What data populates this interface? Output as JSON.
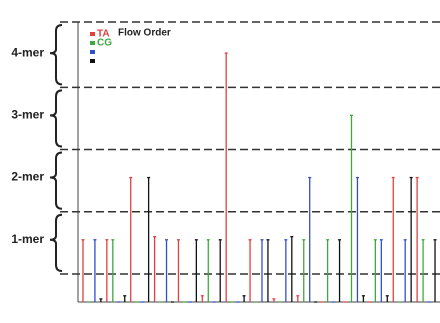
{
  "chart_data": {
    "type": "flowgram",
    "legend": {
      "title": "Flow Order",
      "entries": [
        {
          "label": "TA",
          "color": "#e04040"
        },
        {
          "label": "CG",
          "color": "#40a840"
        },
        {
          "color": "#3050c8"
        },
        {
          "color": "#111111"
        }
      ]
    },
    "flow_colors": [
      "#e04040",
      "#40a840",
      "#3050c8",
      "#111111"
    ],
    "values": [
      1,
      0,
      1,
      0.05,
      1,
      1,
      0,
      0.1,
      2,
      0,
      0,
      2,
      1.05,
      0,
      1,
      0,
      1,
      0,
      0,
      1,
      0.1,
      1,
      0,
      1,
      4,
      0,
      0,
      0.1,
      1,
      0,
      1,
      1,
      0.05,
      0,
      1,
      1.05,
      0.1,
      1,
      2,
      0,
      0,
      1,
      0,
      1,
      0,
      3,
      2,
      0.1,
      0,
      1,
      1,
      0.1,
      2,
      0,
      1,
      2,
      2,
      1,
      0,
      1
    ],
    "ylim": [
      0,
      4.5
    ],
    "yticks": [
      {
        "value": 1,
        "label": "1-mer"
      },
      {
        "value": 2,
        "label": "2-mer"
      },
      {
        "value": 3,
        "label": "3-mer"
      },
      {
        "value": 4,
        "label": "4-mer"
      }
    ],
    "boundaries": [
      0.45,
      1.45,
      2.45,
      3.45,
      4.5
    ]
  }
}
